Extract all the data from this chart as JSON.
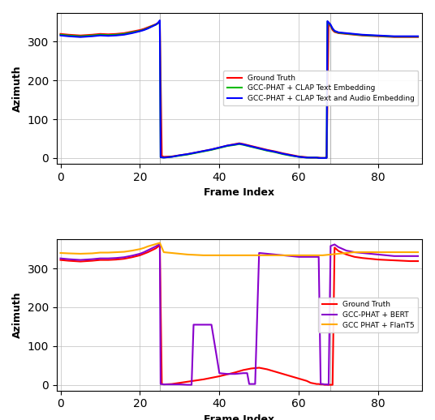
{
  "xlabel": "Frame Index",
  "ylabel": "Azimuth",
  "xlim": [
    -1,
    91
  ],
  "ylim": [
    -15,
    375
  ],
  "yticks": [
    0,
    100,
    200,
    300
  ],
  "xticks": [
    0,
    20,
    40,
    60,
    80
  ],
  "grid_color": "#bbbbbb",
  "top_lines": {
    "ground_truth": {
      "color": "#ff0000",
      "label": "Ground Truth",
      "x": [
        0,
        2,
        5,
        8,
        10,
        12,
        14,
        16,
        18,
        20,
        21,
        22,
        23,
        24,
        24.5,
        25,
        25.5,
        26,
        28,
        30,
        32,
        34,
        36,
        38,
        40,
        42,
        44,
        45,
        46,
        48,
        50,
        52,
        54,
        56,
        58,
        60,
        62,
        63,
        64,
        64.5,
        65,
        65.5,
        66,
        66.5,
        67,
        67.5,
        68,
        68.5,
        69,
        70,
        72,
        74,
        76,
        78,
        80,
        82,
        84,
        86,
        88,
        90
      ],
      "y": [
        320,
        318,
        316,
        318,
        320,
        319,
        320,
        322,
        326,
        330,
        333,
        337,
        341,
        345,
        348,
        350,
        5,
        3,
        4,
        7,
        10,
        14,
        18,
        22,
        27,
        32,
        36,
        38,
        36,
        31,
        26,
        21,
        17,
        12,
        8,
        4,
        2,
        1,
        1,
        1,
        1,
        0,
        0,
        0,
        1,
        350,
        340,
        330,
        325,
        322,
        320,
        318,
        316,
        315,
        314,
        313,
        312,
        312,
        312,
        312
      ]
    },
    "clap_text": {
      "color": "#00bb00",
      "label": "GCC-PHAT + CLAP Text Embedding",
      "x": [
        0,
        2,
        5,
        8,
        10,
        12,
        14,
        16,
        18,
        20,
        21,
        22,
        23,
        24,
        24.5,
        25,
        25.2,
        26,
        28,
        30,
        32,
        34,
        36,
        38,
        40,
        42,
        44,
        45,
        46,
        48,
        50,
        52,
        54,
        56,
        58,
        60,
        62,
        63,
        64,
        64.5,
        65,
        65.5,
        66,
        66.5,
        67,
        67.2,
        68,
        68.5,
        69,
        70,
        72,
        74,
        76,
        78,
        80,
        82,
        84,
        86,
        88,
        90
      ],
      "y": [
        318,
        316,
        314,
        316,
        318,
        317,
        318,
        320,
        324,
        328,
        331,
        335,
        340,
        344,
        347,
        352,
        2,
        1,
        3,
        6,
        9,
        13,
        17,
        21,
        26,
        31,
        34,
        36,
        34,
        29,
        24,
        19,
        15,
        10,
        6,
        3,
        1,
        1,
        1,
        1,
        0,
        0,
        0,
        0,
        1,
        352,
        342,
        333,
        327,
        323,
        321,
        319,
        317,
        316,
        315,
        314,
        313,
        313,
        313,
        313
      ]
    },
    "clap_text_audio": {
      "color": "#0000ff",
      "label": "GCC-PHAT + CLAP Text and Audio Embedding",
      "x": [
        0,
        2,
        5,
        8,
        10,
        12,
        14,
        16,
        18,
        20,
        21,
        22,
        23,
        24,
        24.5,
        25,
        25.2,
        26,
        28,
        30,
        32,
        34,
        36,
        38,
        40,
        42,
        44,
        45,
        46,
        48,
        50,
        52,
        54,
        56,
        58,
        60,
        62,
        63,
        64,
        64.5,
        65,
        65.5,
        66,
        66.5,
        67,
        67.2,
        68,
        68.5,
        69,
        70,
        72,
        74,
        76,
        78,
        80,
        82,
        84,
        86,
        88,
        90
      ],
      "y": [
        316,
        314,
        312,
        314,
        316,
        315,
        316,
        318,
        322,
        327,
        330,
        334,
        339,
        344,
        348,
        355,
        2,
        1,
        3,
        7,
        10,
        14,
        18,
        22,
        27,
        32,
        35,
        37,
        35,
        30,
        25,
        20,
        16,
        11,
        7,
        3,
        1,
        1,
        1,
        1,
        0,
        0,
        0,
        0,
        0,
        353,
        344,
        334,
        328,
        324,
        322,
        320,
        318,
        317,
        316,
        315,
        314,
        314,
        314,
        314
      ]
    }
  },
  "bot_lines": {
    "ground_truth": {
      "color": "#ff0000",
      "label": "Ground Truth",
      "x": [
        0,
        2,
        5,
        8,
        10,
        12,
        14,
        16,
        18,
        20,
        21,
        22,
        23,
        24,
        24.5,
        25,
        25.5,
        26,
        28,
        30,
        32,
        34,
        36,
        38,
        40,
        42,
        44,
        46,
        48,
        50,
        52,
        54,
        56,
        58,
        60,
        62,
        63,
        64,
        64.5,
        65,
        65.5,
        66,
        66.5,
        67,
        67.5,
        68,
        68.5,
        69,
        70,
        72,
        74,
        76,
        78,
        80,
        82,
        84,
        86,
        88,
        90
      ],
      "y": [
        322,
        320,
        318,
        320,
        322,
        322,
        323,
        325,
        329,
        334,
        338,
        342,
        347,
        352,
        356,
        360,
        2,
        1,
        2,
        5,
        8,
        11,
        14,
        18,
        22,
        27,
        32,
        38,
        42,
        44,
        40,
        34,
        28,
        22,
        16,
        10,
        5,
        3,
        2,
        2,
        1,
        1,
        0,
        0,
        0,
        0,
        0,
        354,
        345,
        336,
        330,
        327,
        325,
        323,
        322,
        321,
        320,
        319,
        319
      ]
    },
    "bert": {
      "color": "#8800cc",
      "label": "GCC-PHAT + BERT",
      "x": [
        0,
        2,
        5,
        8,
        10,
        12,
        14,
        16,
        18,
        20,
        21,
        22,
        23,
        24,
        24.5,
        25,
        25.2,
        26,
        28,
        30,
        32,
        33,
        33.5,
        34,
        34.5,
        35,
        36,
        38,
        40,
        42,
        44,
        46,
        47,
        47.5,
        48,
        48.5,
        49,
        50,
        52,
        54,
        56,
        58,
        60,
        62,
        64,
        65,
        65.5,
        66,
        66.5,
        67,
        67.5,
        68,
        68.5,
        69,
        70,
        72,
        74,
        76,
        78,
        80,
        82,
        84,
        86,
        88,
        90
      ],
      "y": [
        326,
        324,
        322,
        324,
        326,
        326,
        327,
        329,
        333,
        338,
        342,
        347,
        352,
        357,
        360,
        364,
        2,
        1,
        1,
        1,
        0,
        0,
        155,
        155,
        155,
        155,
        155,
        155,
        30,
        28,
        28,
        30,
        30,
        2,
        2,
        2,
        2,
        340,
        338,
        336,
        334,
        332,
        330,
        330,
        330,
        330,
        2,
        2,
        1,
        1,
        0,
        358,
        360,
        362,
        355,
        346,
        342,
        340,
        338,
        336,
        334,
        332,
        332,
        332,
        332
      ]
    },
    "flant5": {
      "color": "#ffaa00",
      "label": "GCC PHAT + FlanT5",
      "x": [
        0,
        2,
        5,
        8,
        10,
        12,
        14,
        16,
        18,
        20,
        21,
        22,
        23,
        24,
        25,
        26,
        28,
        30,
        32,
        34,
        36,
        38,
        40,
        42,
        44,
        46,
        48,
        50,
        52,
        54,
        56,
        58,
        60,
        62,
        64,
        66,
        68,
        70,
        72,
        74,
        76,
        78,
        80,
        82,
        84,
        86,
        88,
        90
      ],
      "y": [
        340,
        339,
        338,
        339,
        341,
        341,
        342,
        343,
        346,
        350,
        353,
        357,
        360,
        363,
        366,
        342,
        340,
        338,
        336,
        335,
        334,
        334,
        334,
        334,
        334,
        334,
        334,
        334,
        334,
        334,
        334,
        334,
        334,
        334,
        334,
        334,
        336,
        338,
        340,
        342,
        342,
        342,
        342,
        342,
        342,
        342,
        342,
        342
      ]
    }
  },
  "vlines": [
    25,
    68
  ],
  "vline_color": "#999999",
  "vline_style": "-",
  "linewidth": 1.5
}
